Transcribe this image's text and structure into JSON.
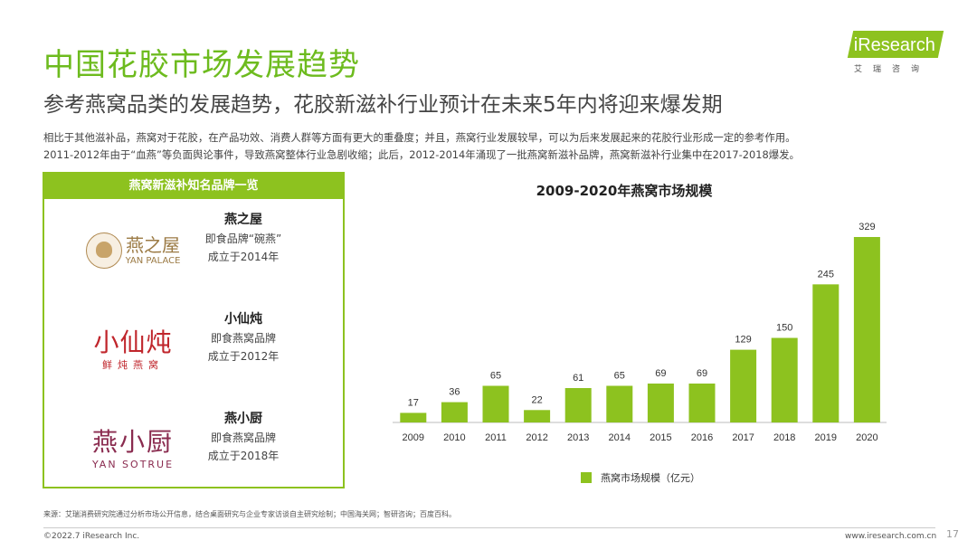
{
  "header": {
    "title": "中国花胶市场发展趋势",
    "subtitle": "参考燕窝品类的发展趋势，花胶新滋补行业预计在未来5年内将迎来爆发期",
    "intro_line1": "相比于其他滋补品，燕窝对于花胶，在产品功效、消费人群等方面有更大的重叠度；并且，燕窝行业发展较早，可以为后来发展起来的花胶行业形成一定的参考作用。",
    "intro_line2": "2011-2012年由于“血燕”等负面舆论事件，导致燕窝整体行业急剧收缩；此后，2012-2014年涌现了一批燕窝新滋补品牌，燕窝新滋补行业集中在2017-2018爆发。"
  },
  "logo": {
    "word": "iResearch",
    "cn": "艾瑞咨询"
  },
  "brands": {
    "panel_title": "燕窝新滋补知名品牌一览",
    "items": [
      {
        "logo_cn": "燕之屋",
        "logo_en": "YAN PALACE",
        "name": "燕之屋",
        "line1": "即食品牌“碗燕”",
        "line2": "成立于2014年"
      },
      {
        "logo_cn": "小仙炖",
        "logo_sub": "鲜炖燕窝",
        "name": "小仙炖",
        "line1": "即食燕窝品牌",
        "line2": "成立于2012年"
      },
      {
        "logo_cn": "燕小厨",
        "logo_en": "YAN SOTRUE",
        "name": "燕小厨",
        "line1": "即食燕窝品牌",
        "line2": "成立于2018年"
      }
    ]
  },
  "chart_data": {
    "type": "bar",
    "title": "2009-2020年燕窝市场规模",
    "categories": [
      "2009",
      "2010",
      "2011",
      "2012",
      "2013",
      "2014",
      "2015",
      "2016",
      "2017",
      "2018",
      "2019",
      "2020"
    ],
    "series": [
      {
        "name": "燕窝市场规模（亿元）",
        "values": [
          17,
          36,
          65,
          22,
          61,
          65,
          69,
          69,
          129,
          150,
          245,
          329
        ]
      }
    ],
    "ylim": [
      0,
      329
    ],
    "grid": false,
    "legend_position": "bottom",
    "bar_color": "#8dc21f"
  },
  "footer": {
    "source": "来源：艾瑞消费研究院通过分析市场公开信息，结合桌面研究与企业专家访谈自主研究绘制；中国海关网；智研咨询；百度百科。",
    "copyright": "©2022.7 iResearch Inc.",
    "site": "www.iresearch.com.cn",
    "page": "17"
  }
}
